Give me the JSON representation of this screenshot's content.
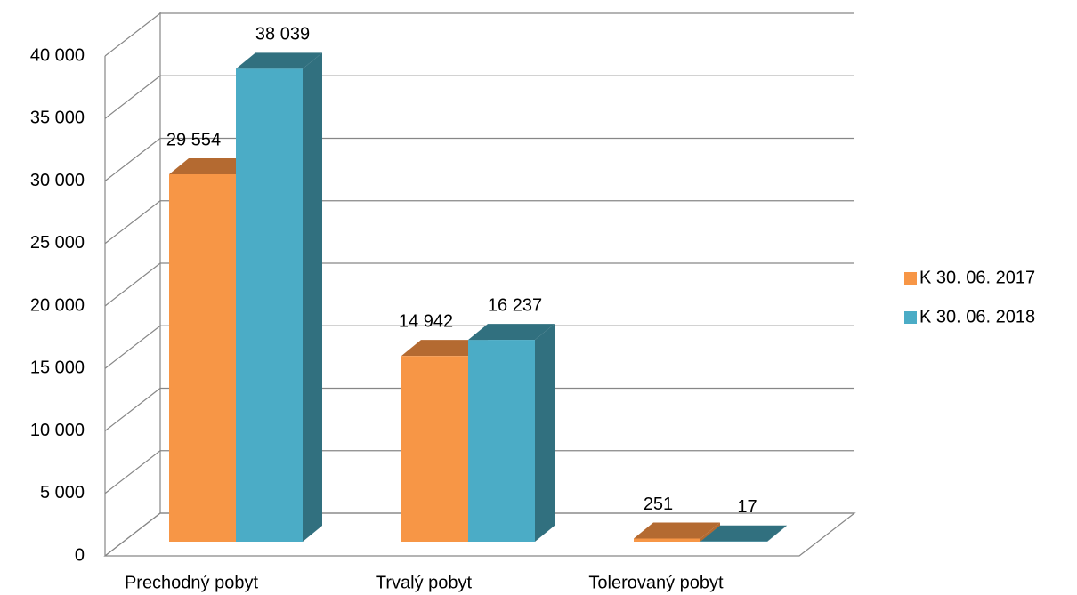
{
  "chart_data": {
    "type": "bar3d",
    "categories": [
      "Prechodný pobyt",
      "Trvalý pobyt",
      "Tolerovaný pobyt"
    ],
    "series": [
      {
        "name": "K 30. 06. 2017",
        "color": "#f79646",
        "side": "#b46a31",
        "values": [
          29554,
          14942,
          251
        ],
        "value_labels": [
          "29 554",
          "14 942",
          "251"
        ]
      },
      {
        "name": "K 30. 06. 2018",
        "color": "#4bacc6",
        "side": "#31707f",
        "values": [
          38039,
          16237,
          17
        ],
        "value_labels": [
          "38 039",
          "16 237",
          "17"
        ]
      }
    ],
    "ylim": [
      0,
      40000
    ],
    "yticks": [
      0,
      {
        "value": 5000,
        "label": "5 000"
      },
      {
        "value": 10000,
        "label": "10 000"
      },
      {
        "value": 15000,
        "label": "15 000"
      },
      {
        "value": 20000,
        "label": "20 000"
      },
      {
        "value": 25000,
        "label": "25 000"
      },
      {
        "value": 30000,
        "label": "30 000"
      },
      {
        "value": 35000,
        "label": "35 000"
      },
      {
        "value": 40000,
        "label": "40 000"
      }
    ],
    "grid": true,
    "legend": "right"
  }
}
